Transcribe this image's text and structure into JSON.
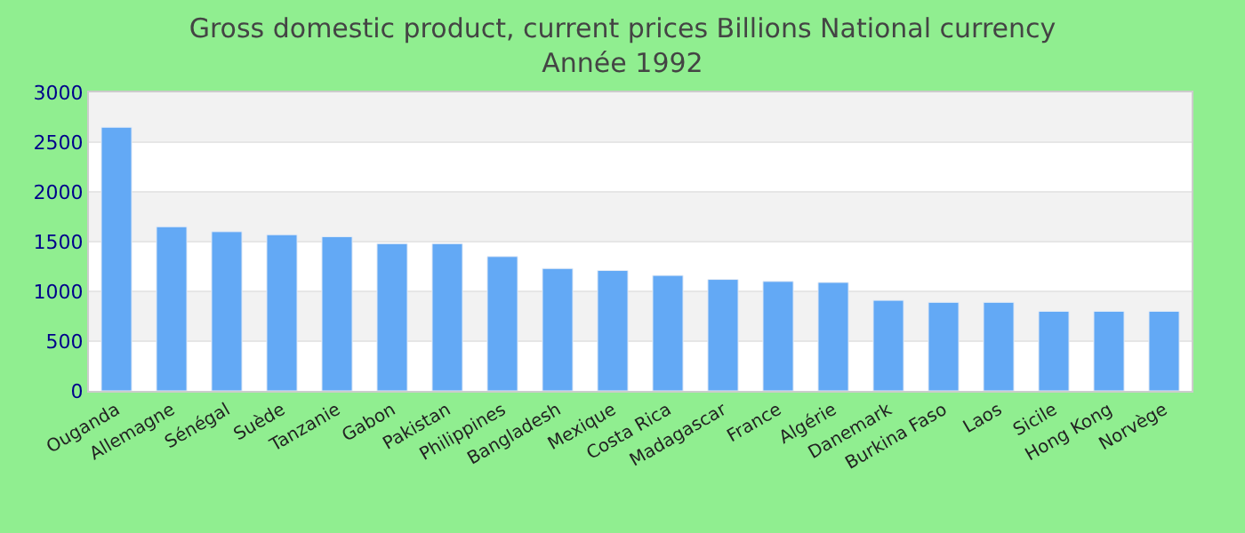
{
  "chart_data": {
    "type": "bar",
    "title": "Gross domestic product, current prices Billions National currency",
    "subtitle": "Année 1992",
    "categories": [
      "Ouganda",
      "Allemagne",
      "Sénégal",
      "Suède",
      "Tanzanie",
      "Gabon",
      "Pakistan",
      "Philippines",
      "Bangladesh",
      "Mexique",
      "Costa Rica",
      "Madagascar",
      "France",
      "Algérie",
      "Danemark",
      "Burkina Faso",
      "Laos",
      "Sicile",
      "Hong Kong",
      "Norvège"
    ],
    "values": [
      2650,
      1650,
      1600,
      1570,
      1550,
      1480,
      1480,
      1350,
      1230,
      1210,
      1160,
      1120,
      1100,
      1090,
      910,
      890,
      890,
      800,
      800,
      800
    ],
    "color": "#63a9f5",
    "ylim": [
      0,
      3000
    ],
    "yticks": [
      0,
      500,
      1000,
      1500,
      2000,
      2500,
      3000
    ],
    "grid": "y"
  }
}
